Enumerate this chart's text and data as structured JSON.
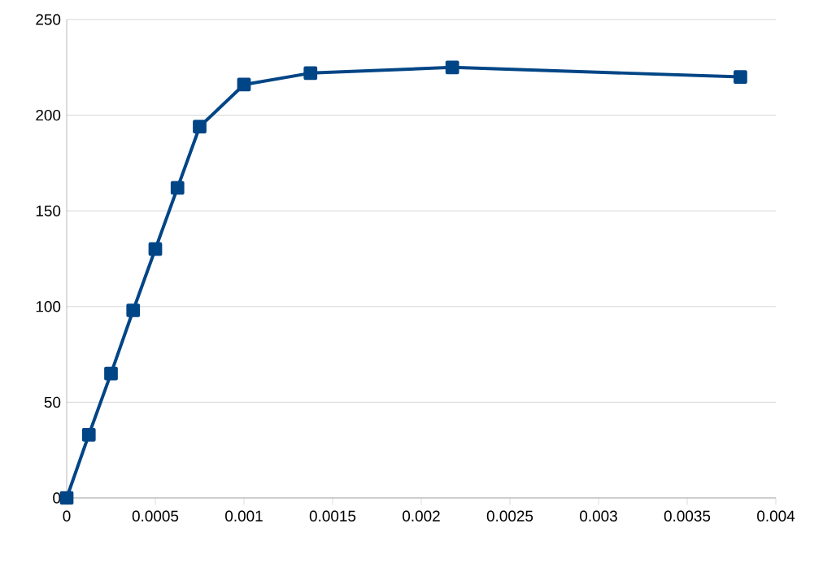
{
  "chart_data": {
    "type": "line",
    "x": [
      0,
      0.000125,
      0.00025,
      0.000375,
      0.0005,
      0.000625,
      0.00075,
      0.001,
      0.001375,
      0.002175,
      0.0038
    ],
    "series": [
      {
        "color": "#004586",
        "values": [
          0,
          33,
          65,
          98,
          130,
          162,
          194,
          216,
          222,
          225,
          220
        ]
      }
    ],
    "xlim": [
      0,
      0.004
    ],
    "xticks": [
      0,
      0.0005,
      0.001,
      0.0015,
      0.002,
      0.0025,
      0.003,
      0.0035,
      0.004
    ],
    "ylim": [
      0,
      250
    ],
    "yticks": [
      0,
      50,
      100,
      150,
      200,
      250
    ],
    "grid": "y",
    "marker": "square",
    "line_style": "solid"
  }
}
